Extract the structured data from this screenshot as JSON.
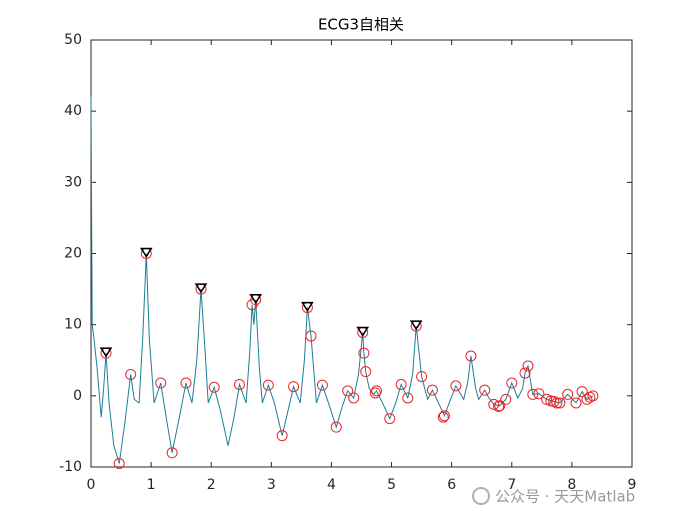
{
  "chart_data": {
    "type": "line",
    "title": "ECG3自相关",
    "xlim": [
      0,
      9
    ],
    "xticks": [
      0,
      1,
      2,
      3,
      4,
      5,
      6,
      7,
      8,
      9
    ],
    "ylim": [
      -10,
      50
    ],
    "yticks": [
      -10,
      0,
      10,
      20,
      30,
      40,
      50
    ],
    "grid": false,
    "series": [
      {
        "color": "#1b7f96",
        "marker": "none",
        "x": [
          0,
          0.02,
          0.05,
          0.1,
          0.17,
          0.21,
          0.25,
          0.3,
          0.38,
          0.47,
          0.56,
          0.66,
          0.72,
          0.8,
          0.86,
          0.92,
          0.97,
          1.05,
          1.16,
          1.25,
          1.35,
          1.47,
          1.58,
          1.68,
          1.76,
          1.83,
          1.9,
          1.95,
          2.05,
          2.15,
          2.28,
          2.38,
          2.47,
          2.58,
          2.64,
          2.68,
          2.71,
          2.74,
          2.8,
          2.85,
          2.95,
          3.05,
          3.18,
          3.28,
          3.37,
          3.48,
          3.55,
          3.6,
          3.66,
          3.75,
          3.85,
          3.95,
          4.08,
          4.18,
          4.27,
          4.37,
          4.45,
          4.52,
          4.54,
          4.57,
          4.63,
          4.7,
          4.75,
          4.85,
          4.97,
          5.07,
          5.16,
          5.27,
          5.35,
          5.41,
          5.5,
          5.6,
          5.68,
          5.78,
          5.88,
          5.98,
          6.07,
          6.2,
          6.27,
          6.32,
          6.4,
          6.45,
          6.55,
          6.62,
          6.7,
          6.8,
          6.9,
          7.0,
          7.1,
          7.18,
          7.22,
          7.27,
          7.35,
          7.45,
          7.58,
          7.7,
          7.8,
          7.93,
          8.07,
          8.17,
          8.25,
          8.35
        ],
        "values": [
          42,
          10,
          8,
          4,
          -3,
          1,
          6,
          -1,
          -7,
          -9.5,
          -4,
          3,
          -0.5,
          -1,
          8,
          20,
          8,
          -1,
          1.8,
          -3,
          -8,
          -3,
          1.8,
          -1,
          5,
          15,
          6,
          -1,
          1.2,
          -2,
          -7,
          -3,
          1.6,
          -1,
          6,
          12.8,
          10,
          13.5,
          4,
          -1,
          1.5,
          -1,
          -5.6,
          -2,
          1.3,
          -1,
          5,
          12.4,
          8.4,
          -1,
          1.5,
          -1,
          -4.4,
          -1.5,
          0.7,
          -0.3,
          3,
          8.9,
          6,
          3.4,
          1,
          0.2,
          0.7,
          -1,
          -3.2,
          -1,
          1.6,
          -0.3,
          3,
          9.8,
          2.7,
          -0.5,
          0.8,
          -1,
          -2.8,
          -0.5,
          1.4,
          -0.5,
          2,
          5.6,
          1,
          -0.5,
          0.8,
          -0.3,
          -1.2,
          -1.4,
          -0.5,
          1.8,
          -0.3,
          1,
          3.2,
          4.2,
          0.2,
          0.3,
          -0.5,
          -0.8,
          -1,
          0.2,
          -1,
          0.6,
          -0.5,
          0
        ]
      },
      {
        "color": "#e8262a",
        "marker": "o",
        "x": [
          0.25,
          0.47,
          0.66,
          0.92,
          1.16,
          1.35,
          1.58,
          1.83,
          2.05,
          2.47,
          2.68,
          2.74,
          2.95,
          3.18,
          3.37,
          3.6,
          3.66,
          3.85,
          4.08,
          4.27,
          4.37,
          4.52,
          4.54,
          4.57,
          4.73,
          4.75,
          4.97,
          5.16,
          5.27,
          5.41,
          5.5,
          5.68,
          5.86,
          5.88,
          6.07,
          6.32,
          6.55,
          6.7,
          6.78,
          6.8,
          6.9,
          7.0,
          7.22,
          7.27,
          7.35,
          7.45,
          7.58,
          7.65,
          7.7,
          7.75,
          7.8,
          7.93,
          8.07,
          8.17,
          8.25,
          8.3,
          8.35
        ],
        "values": [
          6,
          -9.5,
          3,
          20,
          1.8,
          -8,
          1.8,
          15,
          1.2,
          1.6,
          12.8,
          13.5,
          1.5,
          -5.6,
          1.3,
          12.4,
          8.4,
          1.5,
          -4.4,
          0.7,
          -0.3,
          8.9,
          6,
          3.4,
          0.4,
          0.7,
          -3.2,
          1.6,
          -0.3,
          9.8,
          2.7,
          0.8,
          -3,
          -2.8,
          1.4,
          5.6,
          0.8,
          -1.2,
          -1.5,
          -1.4,
          -0.5,
          1.8,
          3.2,
          4.2,
          0.2,
          0.3,
          -0.5,
          -0.7,
          -0.8,
          -1,
          -1,
          0.2,
          -1,
          0.6,
          -0.5,
          -0.2,
          0
        ]
      },
      {
        "color": "#000000",
        "marker": "v",
        "x": [
          0.25,
          0.92,
          1.83,
          2.74,
          3.6,
          4.52,
          5.41
        ],
        "values": [
          6,
          20,
          15,
          13.5,
          12.4,
          8.9,
          9.8
        ]
      }
    ]
  },
  "watermark": "公众号 · 天天Matlab"
}
